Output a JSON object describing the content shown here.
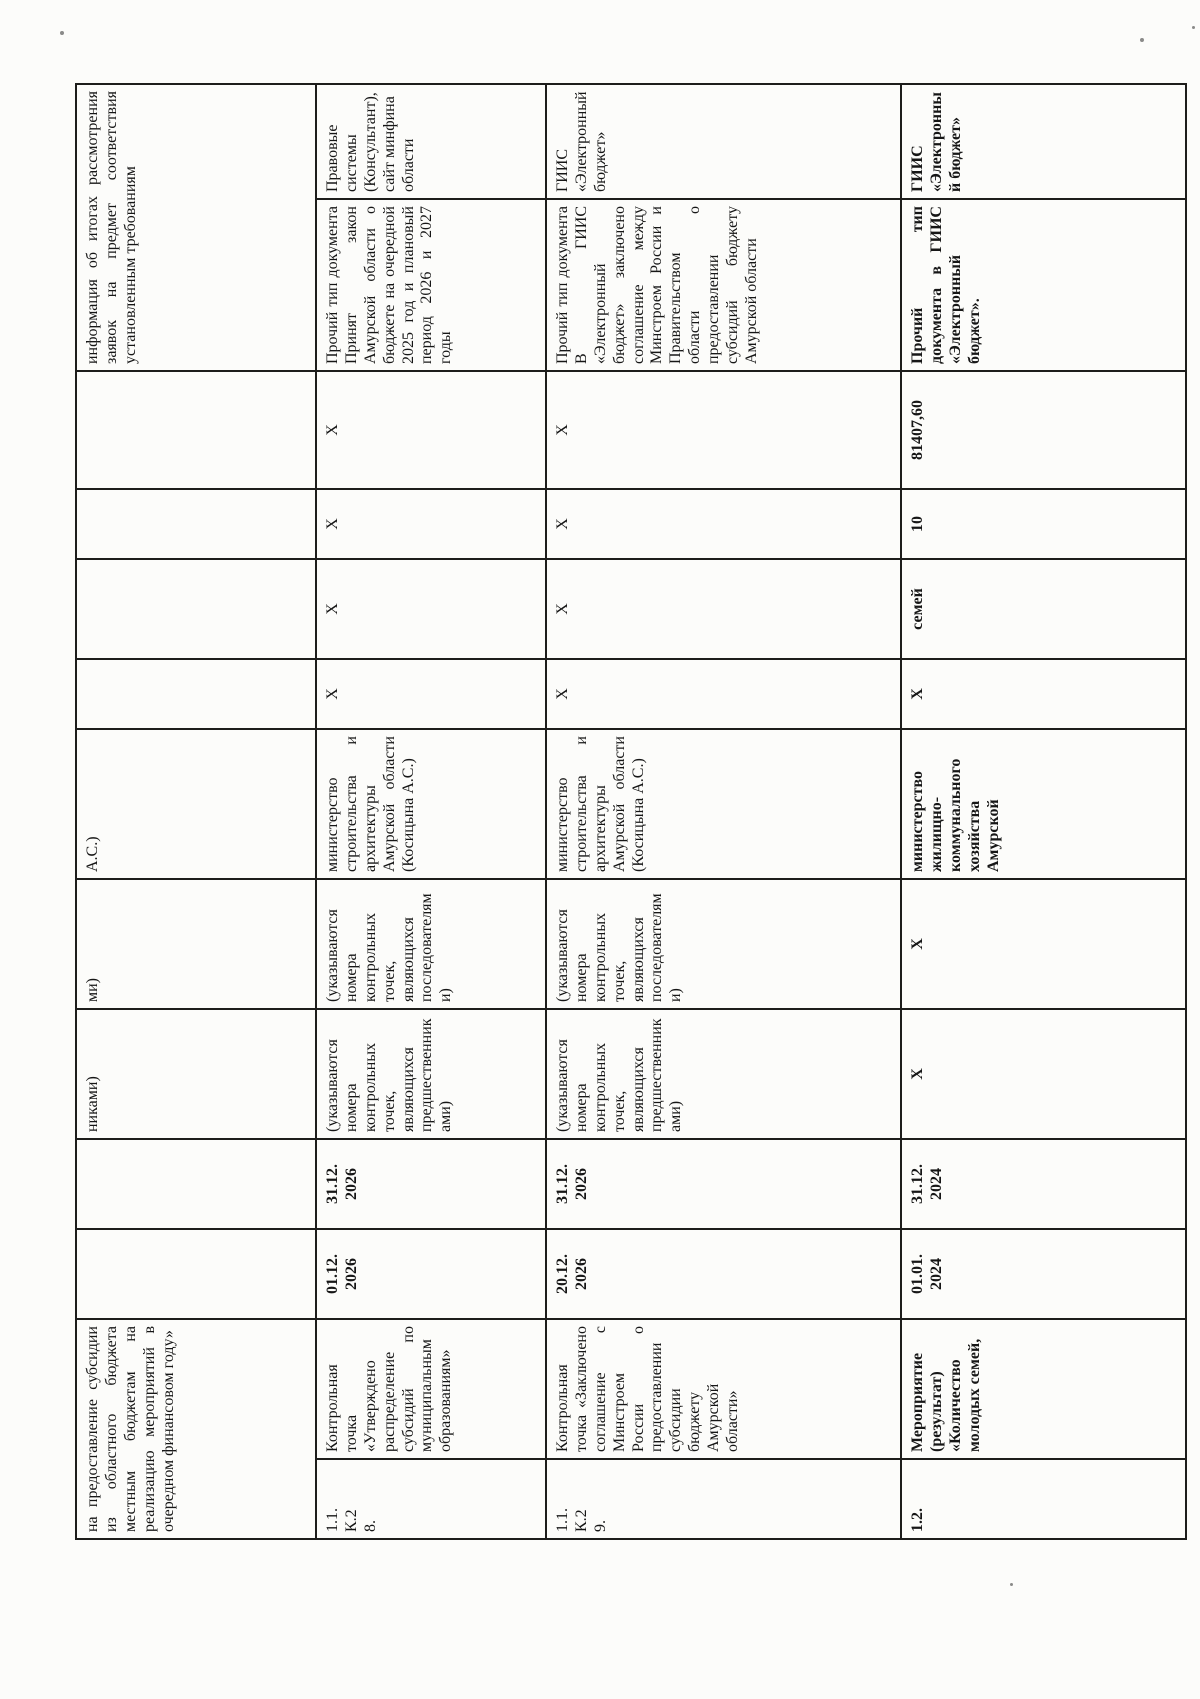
{
  "table": {
    "rows": [
      {
        "cells": [
          {
            "t": "на предоставление субсидии из областного бюджета местным бюджетам на реализацию мероприятий в очередном финансовом году»",
            "cs": 2,
            "al": "justify",
            "n": "name-cell"
          },
          {
            "t": "",
            "n": "start-date-cell"
          },
          {
            "t": "",
            "n": "end-date-cell"
          },
          {
            "t": "никами)",
            "n": "predecessors-cell"
          },
          {
            "t": "ми)",
            "n": "followers-cell"
          },
          {
            "t": "А.С.)",
            "n": "responsible-cell"
          },
          {
            "t": "",
            "n": "value-cell"
          },
          {
            "t": "",
            "n": "value-cell"
          },
          {
            "t": "",
            "n": "value-cell"
          },
          {
            "t": "",
            "n": "value-cell"
          },
          {
            "t": "информация об итогах рассмотрения заявок на предмет соответствия установленным требованиям",
            "cs": 2,
            "al": "justify",
            "n": "document-type-cell"
          }
        ]
      },
      {
        "cells": [
          {
            "t": "1.1.\nК.2\n8.",
            "n": "row-id-cell"
          },
          {
            "t": "Контрольная точка «Утверждено распределение субсидий по муниципальным образованиям»",
            "al": "justify",
            "n": "name-cell"
          },
          {
            "t": "01.12.\n2026",
            "b": true,
            "al": "center",
            "n": "start-date-cell"
          },
          {
            "t": "31.12.\n2026",
            "b": true,
            "al": "center",
            "n": "end-date-cell"
          },
          {
            "t": "(указываются номера контрольных точек, являющихся предшественниками)",
            "al": "justify",
            "n": "predecessors-cell"
          },
          {
            "t": "(указываются номера контрольных точек, являющихся последователями)",
            "al": "justify",
            "n": "followers-cell"
          },
          {
            "t": "министерство строительства и архитектуры Амурской области (Косицына А.С.)",
            "al": "justify",
            "n": "responsible-cell"
          },
          {
            "t": "X",
            "al": "center",
            "n": "value-cell"
          },
          {
            "t": "X",
            "al": "center",
            "n": "value-cell"
          },
          {
            "t": "X",
            "al": "center",
            "n": "value-cell"
          },
          {
            "t": "X",
            "al": "center",
            "n": "value-cell"
          },
          {
            "t": "Прочий тип документа Принят закон Амурской области о бюджете на очередной 2025 год и плановый период 2026 и 2027 годы",
            "al": "justify",
            "n": "document-type-cell"
          },
          {
            "t": "Правовые системы (Консультант), сайт минфина области",
            "n": "info-system-cell"
          }
        ]
      },
      {
        "cells": [
          {
            "t": "1.1.\nК.2\n9.",
            "n": "row-id-cell"
          },
          {
            "t": "Контрольная точка «Заключено соглашение с Минстроем России о предоставлении субсидии бюджету Амурской области»",
            "al": "justify",
            "n": "name-cell"
          },
          {
            "t": "20.12.\n2026",
            "b": true,
            "al": "center",
            "n": "start-date-cell"
          },
          {
            "t": "31.12.\n2026",
            "b": true,
            "al": "center",
            "n": "end-date-cell"
          },
          {
            "t": "(указываются номера контрольных точек, являющихся предшественниками)",
            "al": "justify",
            "n": "predecessors-cell"
          },
          {
            "t": "(указываются номера контрольных точек, являющихся последователями)",
            "al": "justify",
            "n": "followers-cell"
          },
          {
            "t": "министерство строительства и архитектуры Амурской области (Косицына А.С.)",
            "al": "justify",
            "n": "responsible-cell"
          },
          {
            "t": "X",
            "al": "center",
            "n": "value-cell"
          },
          {
            "t": "X",
            "al": "center",
            "n": "value-cell"
          },
          {
            "t": "X",
            "al": "center",
            "n": "value-cell"
          },
          {
            "t": "X",
            "al": "center",
            "n": "value-cell"
          },
          {
            "t": "Прочий тип документа В ГИИС «Электронный бюджет» заключено соглашение между Минстроем России и Правительством области о предоставлении субсидий бюджету Амурской области",
            "al": "justify",
            "n": "document-type-cell"
          },
          {
            "t": "ГИИС «Электронный бюджет»",
            "n": "info-system-cell"
          }
        ]
      },
      {
        "cells": [
          {
            "t": "1.2.",
            "b": true,
            "n": "row-id-cell"
          },
          {
            "t": "Мероприятие (результат) «Количество молодых семей,",
            "b": true,
            "al": "justify",
            "n": "name-cell"
          },
          {
            "t": "01.01.\n2024",
            "b": true,
            "al": "center",
            "n": "start-date-cell"
          },
          {
            "t": "31.12.\n2024",
            "b": true,
            "al": "center",
            "n": "end-date-cell"
          },
          {
            "t": "X",
            "b": true,
            "al": "center",
            "n": "predecessors-cell"
          },
          {
            "t": "X",
            "b": true,
            "al": "center",
            "n": "followers-cell"
          },
          {
            "t": "министерство жилищно-коммунального хозяйства Амурской",
            "b": true,
            "al": "justify",
            "n": "responsible-cell"
          },
          {
            "t": "X",
            "b": true,
            "al": "center",
            "n": "value-cell"
          },
          {
            "t": "семей",
            "b": true,
            "al": "center",
            "n": "value-cell"
          },
          {
            "t": "10",
            "b": true,
            "al": "center",
            "n": "value-cell"
          },
          {
            "t": "81407,60",
            "b": true,
            "al": "center",
            "n": "value-cell"
          },
          {
            "t": "Прочий тип документа в ГИИС «Электронный бюджет».",
            "b": true,
            "al": "justify",
            "n": "document-type-cell"
          },
          {
            "t": "ГИИС «Электронный бюджет»",
            "b": true,
            "n": "info-system-cell"
          }
        ]
      }
    ]
  }
}
